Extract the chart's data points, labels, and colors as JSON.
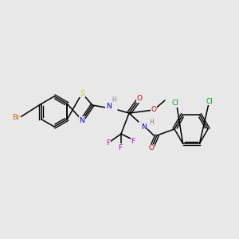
{
  "bg_color": "#e8e8e8",
  "bond_color": "#000000",
  "atom_colors": {
    "Br": "#cc6600",
    "S": "#cccc00",
    "N": "#0000cc",
    "O": "#cc0000",
    "F": "#cc00cc",
    "Cl": "#00aa00",
    "H": "#888888",
    "C": "#000000"
  },
  "font_size": 6.5,
  "bond_width": 1.1
}
